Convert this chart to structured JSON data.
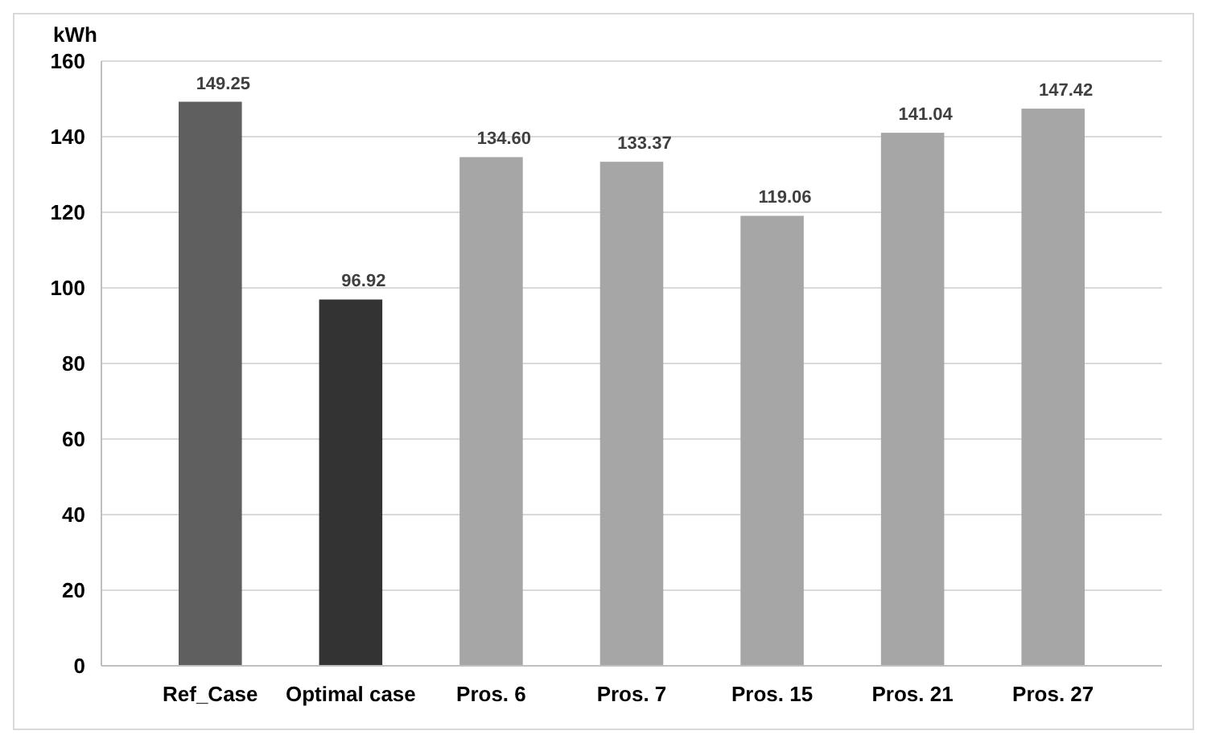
{
  "chart_data": {
    "type": "bar",
    "ylabel": "kWh",
    "categories": [
      "Ref_Case",
      "Optimal case",
      "Pros. 6",
      "Pros. 7",
      "Pros. 15",
      "Pros. 21",
      "Pros. 27"
    ],
    "values": [
      149.25,
      96.92,
      134.6,
      133.37,
      119.06,
      141.04,
      147.42
    ],
    "colors": [
      "#5f5f5f",
      "#333333",
      "#a6a6a6",
      "#a6a6a6",
      "#a6a6a6",
      "#a6a6a6",
      "#a6a6a6"
    ],
    "value_labels": [
      "149.25",
      "96.92",
      "134.60",
      "133.37",
      "119.06",
      "141.04",
      "147.42"
    ],
    "ylim": [
      0,
      160
    ],
    "yticks": [
      0,
      20,
      40,
      60,
      80,
      100,
      120,
      140,
      160
    ],
    "grid": "y"
  }
}
